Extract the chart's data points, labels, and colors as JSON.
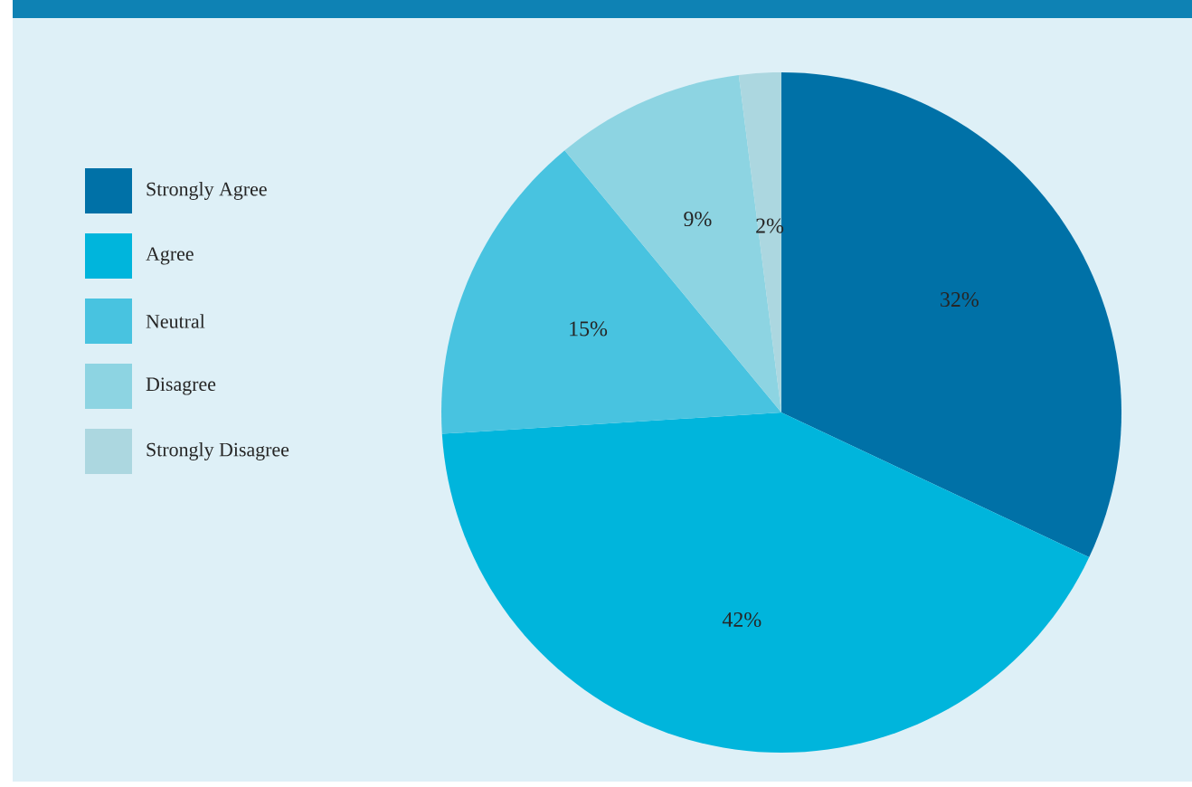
{
  "chart_data": {
    "type": "pie",
    "categories": [
      "Strongly Agree",
      "Agree",
      "Neutral",
      "Disagree",
      "Strongly Disagree"
    ],
    "values": [
      32,
      42,
      15,
      9,
      2
    ],
    "value_labels": [
      "32%",
      "42%",
      "15%",
      "9%",
      "2%"
    ],
    "colors": [
      "#0071a7",
      "#00b5dc",
      "#48c3e0",
      "#8dd4e2",
      "#acd7e0"
    ],
    "legend": "left"
  }
}
